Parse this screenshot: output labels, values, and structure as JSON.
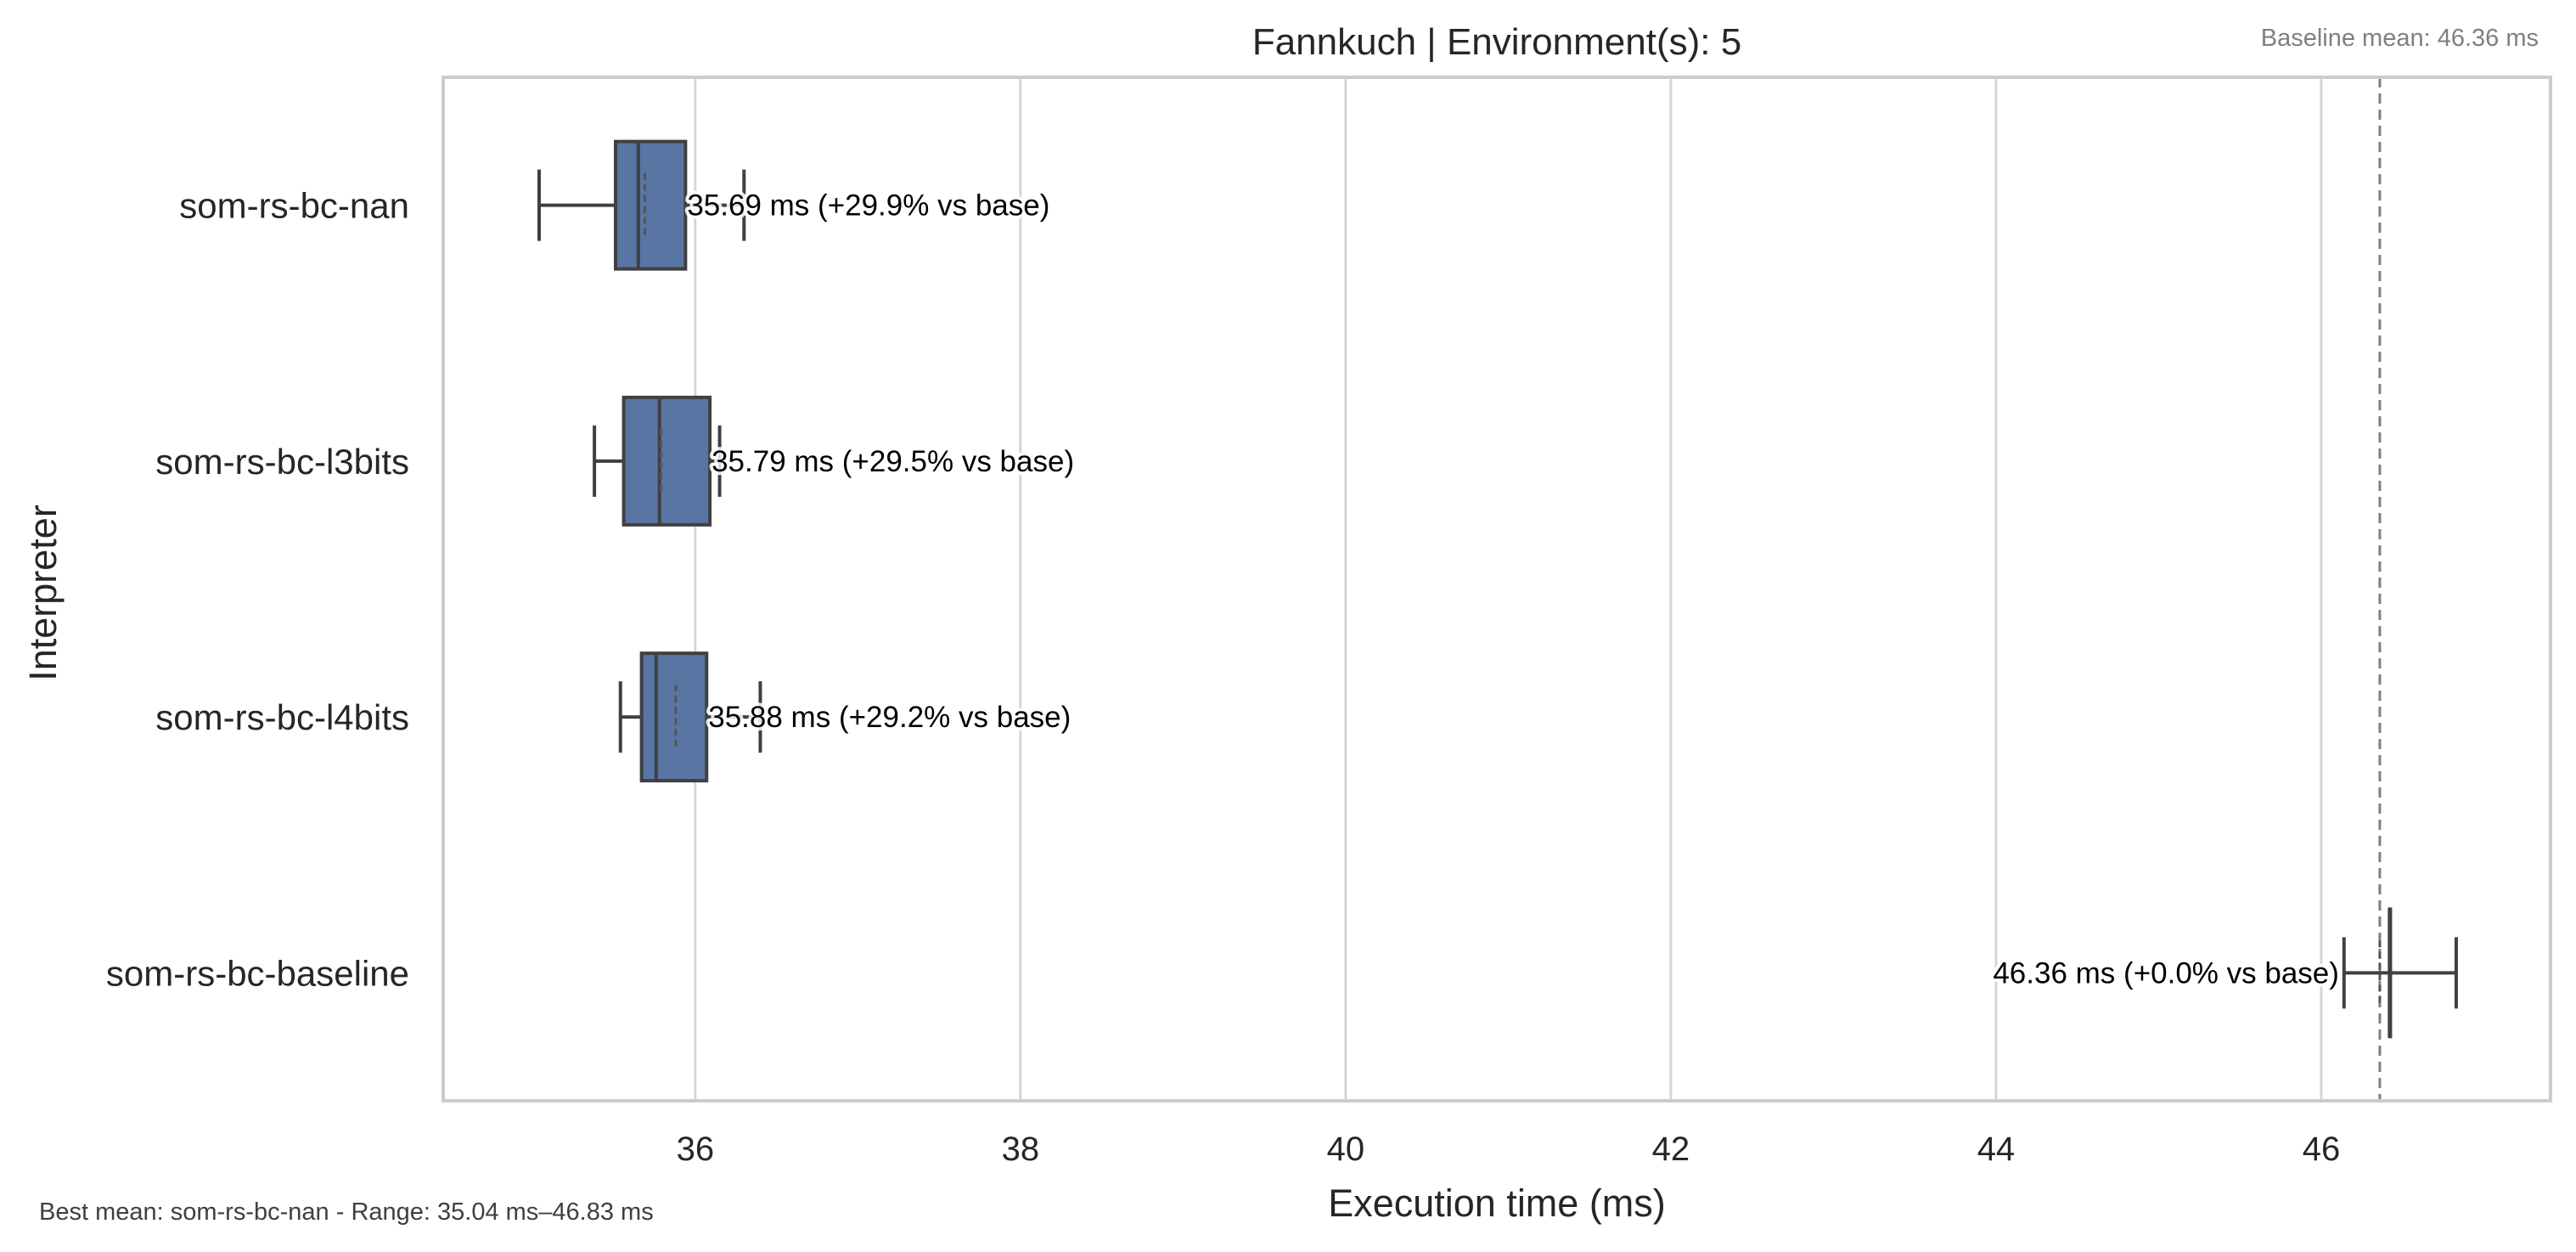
{
  "chart_data": {
    "type": "box",
    "orientation": "horizontal",
    "title": "Fannkuch | Environment(s): 5",
    "xlabel": "Execution time (ms)",
    "ylabel": "Interpreter",
    "xlim": [
      34.45,
      47.41
    ],
    "xticks": [
      36,
      38,
      40,
      42,
      44,
      46
    ],
    "grid": "vertical",
    "baseline_mean": 46.36,
    "baseline_note": "Baseline mean: 46.36 ms",
    "footer_note": "Best mean: som-rs-bc-nan - Range: 35.04 ms–46.83 ms",
    "box_color": "#5975a4",
    "series": [
      {
        "name": "som-rs-bc-nan",
        "whisker_low": 35.04,
        "q1": 35.51,
        "median": 35.65,
        "q3": 35.94,
        "whisker_high": 36.3,
        "mean": 35.69,
        "label": "35.69 ms  (+29.9% vs base)"
      },
      {
        "name": "som-rs-bc-l3bits",
        "whisker_low": 35.38,
        "q1": 35.56,
        "median": 35.78,
        "q3": 36.09,
        "whisker_high": 36.15,
        "mean": 35.79,
        "label": "35.79 ms  (+29.5% vs base)"
      },
      {
        "name": "som-rs-bc-l4bits",
        "whisker_low": 35.54,
        "q1": 35.67,
        "median": 35.76,
        "q3": 36.07,
        "whisker_high": 36.4,
        "mean": 35.88,
        "label": "35.88 ms  (+29.2% vs base)"
      },
      {
        "name": "som-rs-bc-baseline",
        "whisker_low": 46.14,
        "q1": 46.42,
        "median": 46.42,
        "q3": 46.42,
        "whisker_high": 46.83,
        "mean": 46.36,
        "label": "46.36 ms  (+0.0% vs base)"
      }
    ]
  }
}
